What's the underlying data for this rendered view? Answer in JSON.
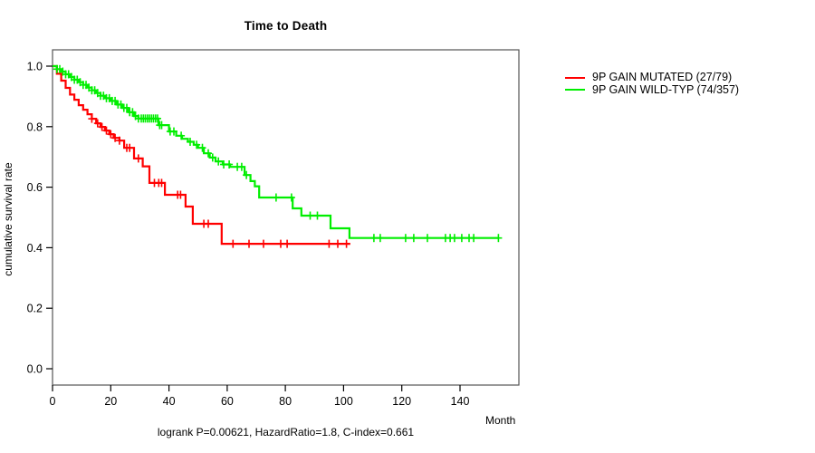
{
  "chart_data": {
    "type": "line",
    "subtype": "kaplan-meier-step-curves",
    "title": "Time to Death",
    "xlabel": "Month",
    "ylabel": "cumulative survival rate",
    "annotation": "logrank P=0.00621, HazardRatio=1.8, C-index=0.661",
    "xlim": [
      0,
      160
    ],
    "ylim": [
      0.0,
      1.04
    ],
    "xticks": [
      0,
      20,
      40,
      60,
      80,
      100,
      120,
      140
    ],
    "yticks": [
      0.0,
      0.2,
      0.4,
      0.6,
      0.8,
      1.0
    ],
    "grid": false,
    "legend_position": "right-outside",
    "axis_color": "#555555",
    "tick_color": "#000000",
    "series": [
      {
        "name": "9P GAIN MUTATED (27/79)",
        "color": "#ff0000",
        "end_time": 102.3,
        "steps": [
          [
            0,
            1.0
          ],
          [
            1.5,
            0.975
          ],
          [
            3,
            0.952
          ],
          [
            4.5,
            0.928
          ],
          [
            6,
            0.906
          ],
          [
            7.5,
            0.889
          ],
          [
            9,
            0.871
          ],
          [
            10.5,
            0.856
          ],
          [
            12,
            0.841
          ],
          [
            13.5,
            0.826
          ],
          [
            15,
            0.811
          ],
          [
            16.5,
            0.799
          ],
          [
            18,
            0.787
          ],
          [
            19.5,
            0.775
          ],
          [
            21,
            0.763
          ],
          [
            23,
            0.754
          ],
          [
            24.6,
            0.73
          ],
          [
            28,
            0.695
          ],
          [
            31,
            0.669
          ],
          [
            33.3,
            0.614
          ],
          [
            38.6,
            0.575
          ],
          [
            45.7,
            0.536
          ],
          [
            48.2,
            0.479
          ],
          [
            58.1,
            0.413
          ]
        ],
        "censor_times": [
          13.5,
          15.5,
          17,
          18.5,
          20,
          21.5,
          23,
          25.5,
          26.5,
          29.5,
          35,
          36.5,
          37.5,
          43,
          44,
          52,
          53.5,
          62,
          67.5,
          72.5,
          78.4,
          80.6,
          95,
          98,
          101
        ]
      },
      {
        "name": "9P GAIN WILD-TYP (74/357)",
        "color": "#00ee00",
        "end_time": 153.2,
        "steps": [
          [
            0,
            1.0
          ],
          [
            1.5,
            0.99
          ],
          [
            3,
            0.982
          ],
          [
            4.5,
            0.973
          ],
          [
            6,
            0.964
          ],
          [
            7.5,
            0.955
          ],
          [
            9,
            0.947
          ],
          [
            10.5,
            0.938
          ],
          [
            12,
            0.929
          ],
          [
            13.5,
            0.92
          ],
          [
            15,
            0.911
          ],
          [
            16.5,
            0.902
          ],
          [
            18,
            0.894
          ],
          [
            20,
            0.885
          ],
          [
            22,
            0.873
          ],
          [
            24,
            0.862
          ],
          [
            26,
            0.848
          ],
          [
            28,
            0.835
          ],
          [
            29.5,
            0.827
          ],
          [
            36.4,
            0.805
          ],
          [
            40,
            0.784
          ],
          [
            42.5,
            0.77
          ],
          [
            44.5,
            0.76
          ],
          [
            46.5,
            0.75
          ],
          [
            48.5,
            0.74
          ],
          [
            50,
            0.73
          ],
          [
            52,
            0.712
          ],
          [
            54,
            0.698
          ],
          [
            56,
            0.685
          ],
          [
            58.5,
            0.675
          ],
          [
            61,
            0.667
          ],
          [
            66,
            0.64
          ],
          [
            68,
            0.62
          ],
          [
            69.5,
            0.603
          ],
          [
            71,
            0.566
          ],
          [
            82.5,
            0.53
          ],
          [
            85.5,
            0.506
          ],
          [
            95.5,
            0.464
          ],
          [
            102,
            0.432
          ]
        ],
        "censor_times": [
          1.5,
          2.5,
          3.5,
          4.5,
          5.5,
          6.5,
          7.5,
          8.5,
          9.5,
          10.5,
          11.5,
          12.5,
          13.5,
          14.5,
          15.5,
          16.5,
          17.5,
          18.5,
          19.5,
          20.5,
          21.5,
          22.5,
          23.5,
          24.5,
          25.5,
          26.5,
          27.5,
          28.5,
          29.5,
          30.5,
          31.2,
          31.9,
          32.6,
          33.3,
          34,
          34.7,
          35.4,
          36.1,
          36.8,
          37.5,
          40.4,
          41.7,
          44.2,
          47.3,
          49.5,
          51.5,
          53.5,
          55,
          57,
          58.8,
          60.7,
          63.5,
          65,
          66.6,
          76.8,
          82.1,
          88.5,
          91,
          110.4,
          112.6,
          121.3,
          124.1,
          128.8,
          135,
          136.6,
          138.1,
          140.6,
          143.1,
          144.7,
          153.2
        ]
      }
    ]
  }
}
